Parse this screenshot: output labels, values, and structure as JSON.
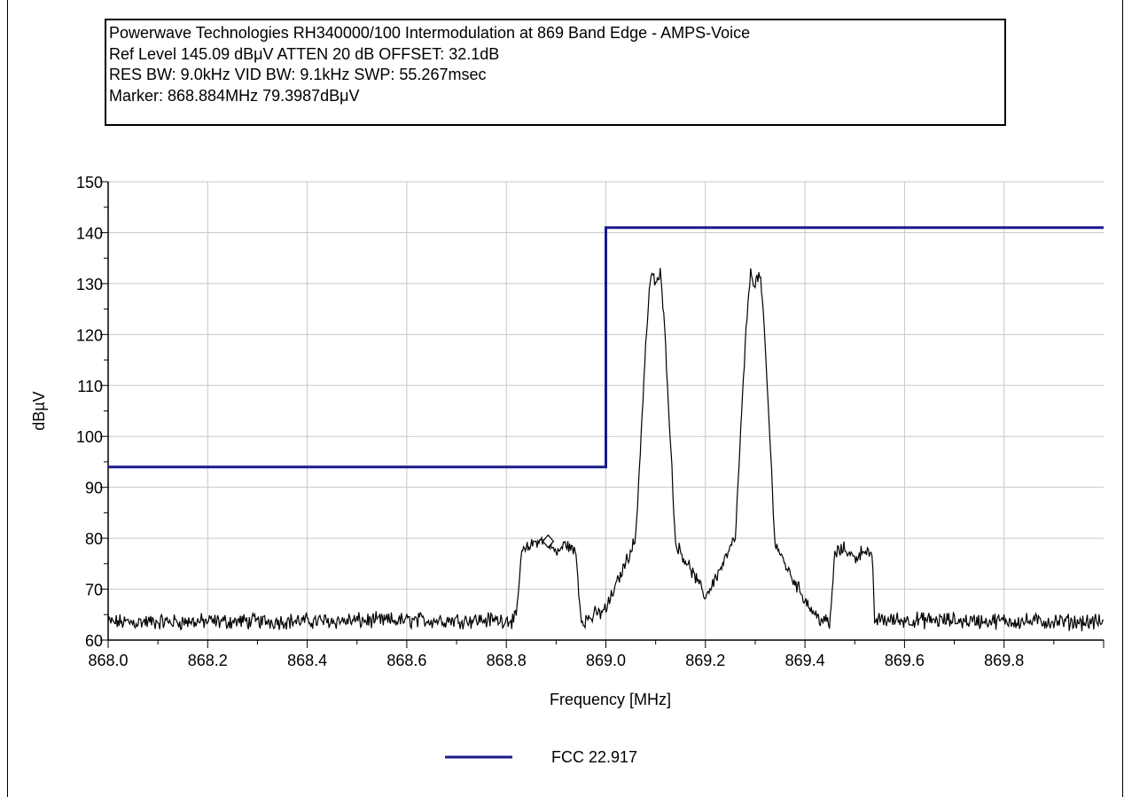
{
  "header": {
    "lines": [
      "Powerwave Technologies RH340000/100 Intermodulation at 869 Band Edge - AMPS-Voice",
      "Ref Level 145.09 dBμV    ATTEN 20 dB    OFFSET: 32.1dB",
      "RES BW: 9.0kHz  VID BW: 9.1kHz  SWP: 55.267msec",
      "Marker: 868.884MHz  79.3987dBμV"
    ]
  },
  "colors": {
    "limit_line": "#1a1a8c",
    "trace": "#000000",
    "grid": "#c8c8c8"
  },
  "chart_data": {
    "type": "line",
    "title": "Powerwave Technologies RH340000/100 Intermodulation at 869 Band Edge - AMPS-Voice",
    "xlabel": "Frequency [MHz]",
    "ylabel": "dBµV",
    "xlim": [
      868.0,
      870.0
    ],
    "ylim": [
      60,
      150
    ],
    "x_ticks": [
      "868.0",
      "868.2",
      "868.4",
      "868.6",
      "868.8",
      "869.0",
      "869.2",
      "869.4",
      "869.6",
      "869.8"
    ],
    "y_ticks": [
      "60",
      "70",
      "80",
      "90",
      "100",
      "110",
      "120",
      "130",
      "140",
      "150"
    ],
    "grid": true,
    "legend_position": "bottom-center",
    "series": [
      {
        "name": "FCC 22.917",
        "color": "#1a1a8c",
        "x": [
          868.0,
          869.0,
          869.0,
          870.0
        ],
        "y": [
          94,
          94,
          141,
          141
        ]
      },
      {
        "name": "",
        "color": "#000000",
        "noise_floor": 63.5,
        "x": [
          868.0,
          868.82,
          868.83,
          868.86,
          868.884,
          868.9,
          868.92,
          868.94,
          868.95,
          868.96,
          869.0,
          869.03,
          869.06,
          869.08,
          869.09,
          869.1,
          869.11,
          869.12,
          869.14,
          869.17,
          869.2,
          869.23,
          869.26,
          869.28,
          869.29,
          869.3,
          869.31,
          869.32,
          869.34,
          869.37,
          869.4,
          869.42,
          869.45,
          869.46,
          869.48,
          869.5,
          869.52,
          869.535,
          869.54,
          870.0
        ],
        "y": [
          63.5,
          64,
          77,
          79.5,
          79.4,
          77,
          79,
          77,
          64,
          64,
          66,
          73,
          80,
          118,
          132,
          130,
          132,
          118,
          79,
          74,
          68.5,
          74,
          80,
          118,
          132,
          130,
          132,
          118,
          79,
          73,
          68,
          65,
          63,
          77,
          78,
          76,
          78,
          76,
          64,
          63.5
        ]
      }
    ],
    "marker": {
      "x": 868.884,
      "y": 79.3987
    }
  }
}
